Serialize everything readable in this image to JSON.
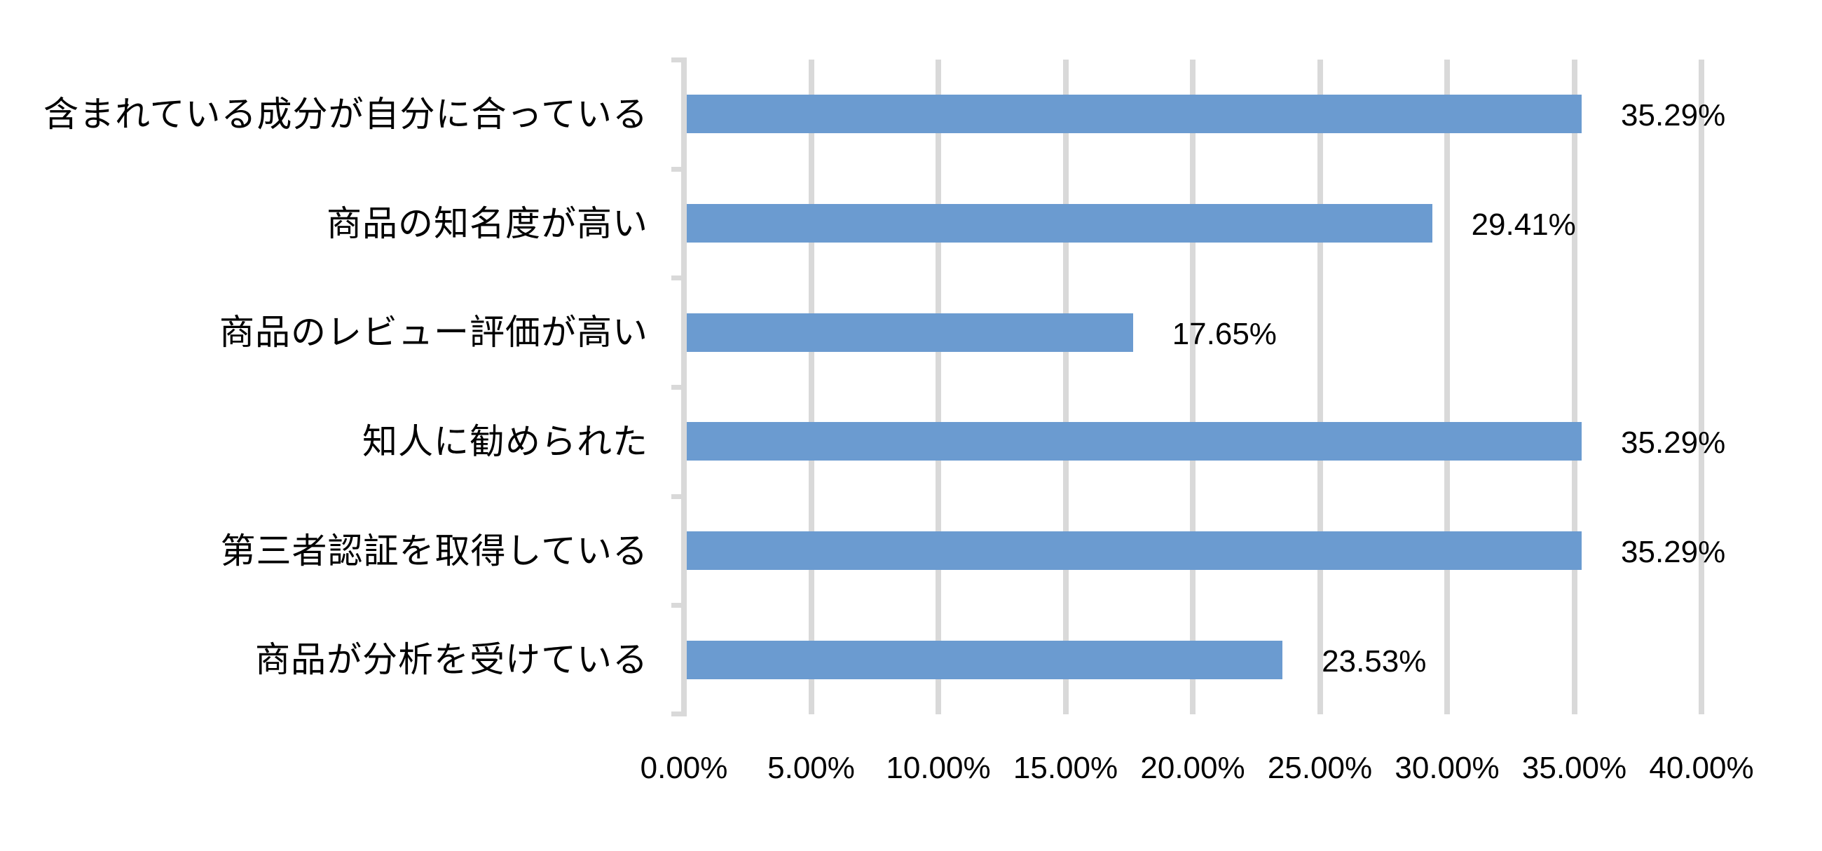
{
  "chart_data": {
    "type": "bar",
    "orientation": "horizontal",
    "title": "",
    "xlabel": "",
    "ylabel": "",
    "categories": [
      "含まれている成分が自分に合っている",
      "商品の知名度が高い",
      "商品のレビュー評価が高い",
      "知人に勧められた",
      "第三者認証を取得している",
      "商品が分析を受けている"
    ],
    "values": [
      35.29,
      29.41,
      17.65,
      35.29,
      35.29,
      23.53
    ],
    "value_labels": [
      "35.29%",
      "29.41%",
      "17.65%",
      "35.29%",
      "35.29%",
      "23.53%"
    ],
    "xlim": [
      0,
      40
    ],
    "x_ticks": [
      0,
      5,
      10,
      15,
      20,
      25,
      30,
      35,
      40
    ],
    "x_tick_labels": [
      "0.00%",
      "5.00%",
      "10.00%",
      "15.00%",
      "20.00%",
      "25.00%",
      "30.00%",
      "35.00%",
      "40.00%"
    ],
    "grid": "vertical",
    "legend": "none",
    "bar_color": "#6b9bd0",
    "grid_color": "#d9d9d9"
  }
}
